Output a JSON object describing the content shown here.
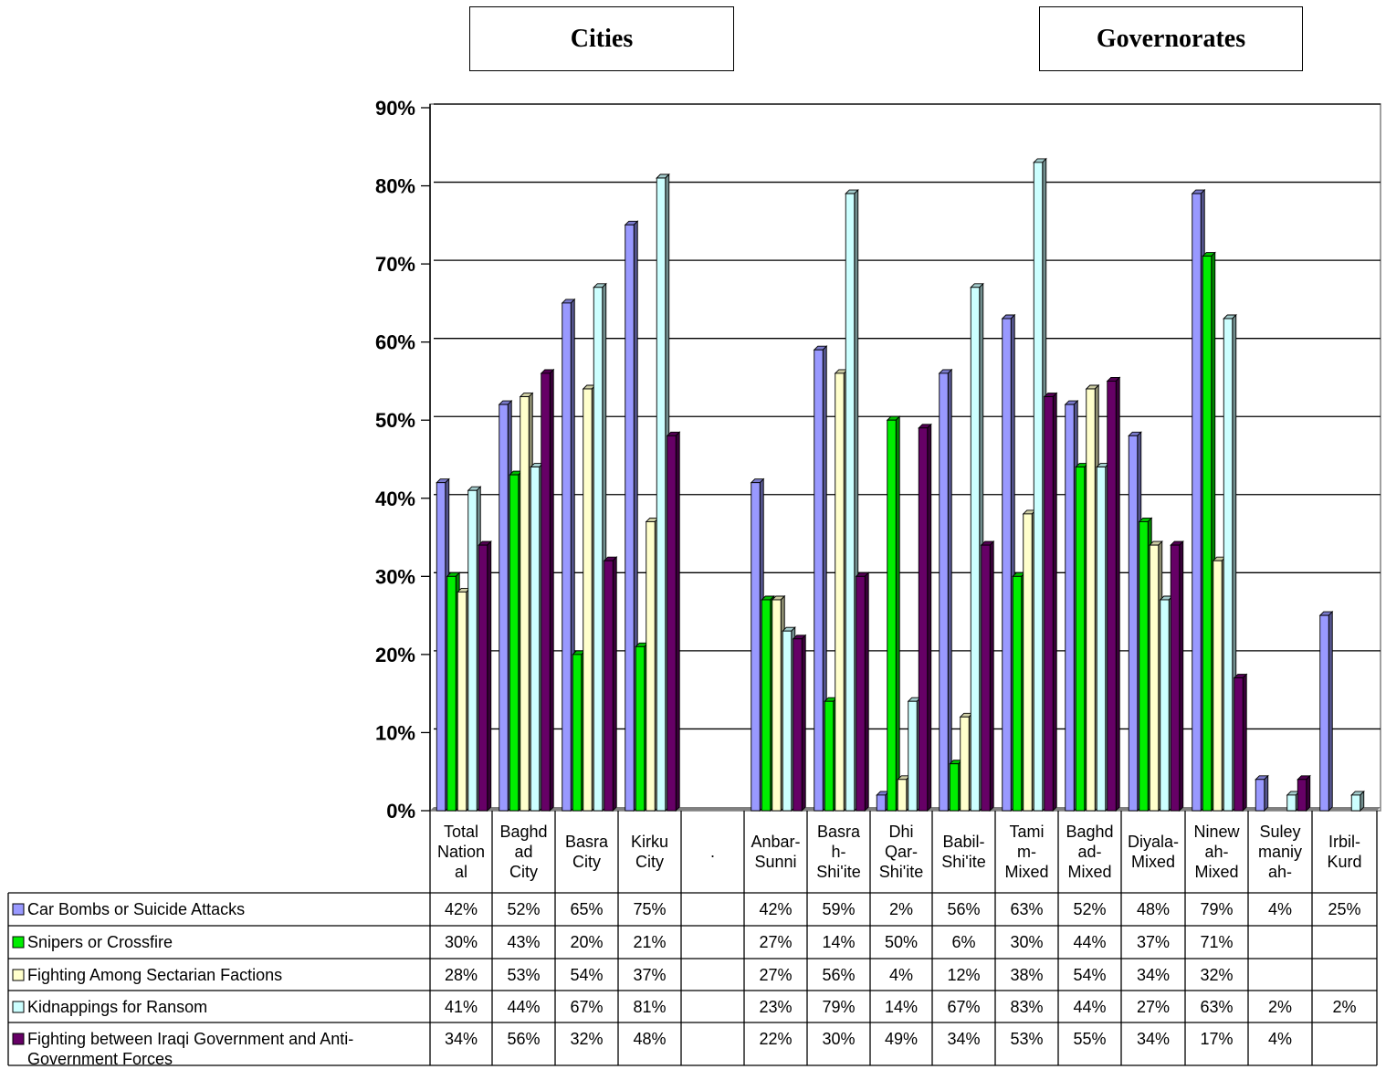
{
  "headers": {
    "cities": "Cities",
    "governorates": "Governorates"
  },
  "chart_data": {
    "type": "bar",
    "y_ticks": [
      "0%",
      "10%",
      "20%",
      "30%",
      "40%",
      "50%",
      "60%",
      "70%",
      "80%",
      "90%"
    ],
    "ylim": [
      0,
      90
    ],
    "grid": true,
    "categories": [
      [
        "Total",
        "Nation",
        "al"
      ],
      [
        "Baghd",
        "ad",
        "City"
      ],
      [
        "Basra",
        "City"
      ],
      [
        "Kirku",
        "City"
      ],
      [
        "."
      ],
      [
        "Anbar-",
        "Sunni"
      ],
      [
        "Basra",
        "h-",
        "Shi'ite"
      ],
      [
        "Dhi",
        "Qar-",
        "Shi'ite"
      ],
      [
        "Babil-",
        "Shi'ite"
      ],
      [
        "Tami",
        "m-",
        "Mixed"
      ],
      [
        "Baghd",
        "ad-",
        "Mixed"
      ],
      [
        "Diyala-",
        "Mixed"
      ],
      [
        "Ninew",
        "ah-",
        "Mixed"
      ],
      [
        "Suley",
        "maniy",
        "ah-"
      ],
      [
        "Irbil-",
        "Kurd"
      ]
    ],
    "series": [
      {
        "name_lines": [
          "Car Bombs or Suicide Attacks"
        ],
        "color": "#9999ff",
        "values": [
          42,
          52,
          65,
          75,
          null,
          42,
          59,
          2,
          56,
          63,
          52,
          48,
          79,
          4,
          25
        ]
      },
      {
        "name_lines": [
          "Snipers or Crossfire"
        ],
        "color": "#00ee00",
        "values": [
          30,
          43,
          20,
          21,
          null,
          27,
          14,
          50,
          6,
          30,
          44,
          37,
          71,
          null,
          null
        ]
      },
      {
        "name_lines": [
          "Fighting Among Sectarian Factions"
        ],
        "color": "#ffffcc",
        "values": [
          28,
          53,
          54,
          37,
          null,
          27,
          56,
          4,
          12,
          38,
          54,
          34,
          32,
          null,
          null
        ]
      },
      {
        "name_lines": [
          "Kidnappings for Ransom"
        ],
        "color": "#ccffff",
        "values": [
          41,
          44,
          67,
          81,
          null,
          23,
          79,
          14,
          67,
          83,
          44,
          27,
          63,
          2,
          2
        ]
      },
      {
        "name_lines": [
          "Fighting between Iraqi Government and Anti-",
          "Government Forces"
        ],
        "color": "#660066",
        "values": [
          34,
          56,
          32,
          48,
          null,
          22,
          30,
          49,
          34,
          53,
          55,
          34,
          17,
          4,
          null
        ]
      }
    ]
  }
}
